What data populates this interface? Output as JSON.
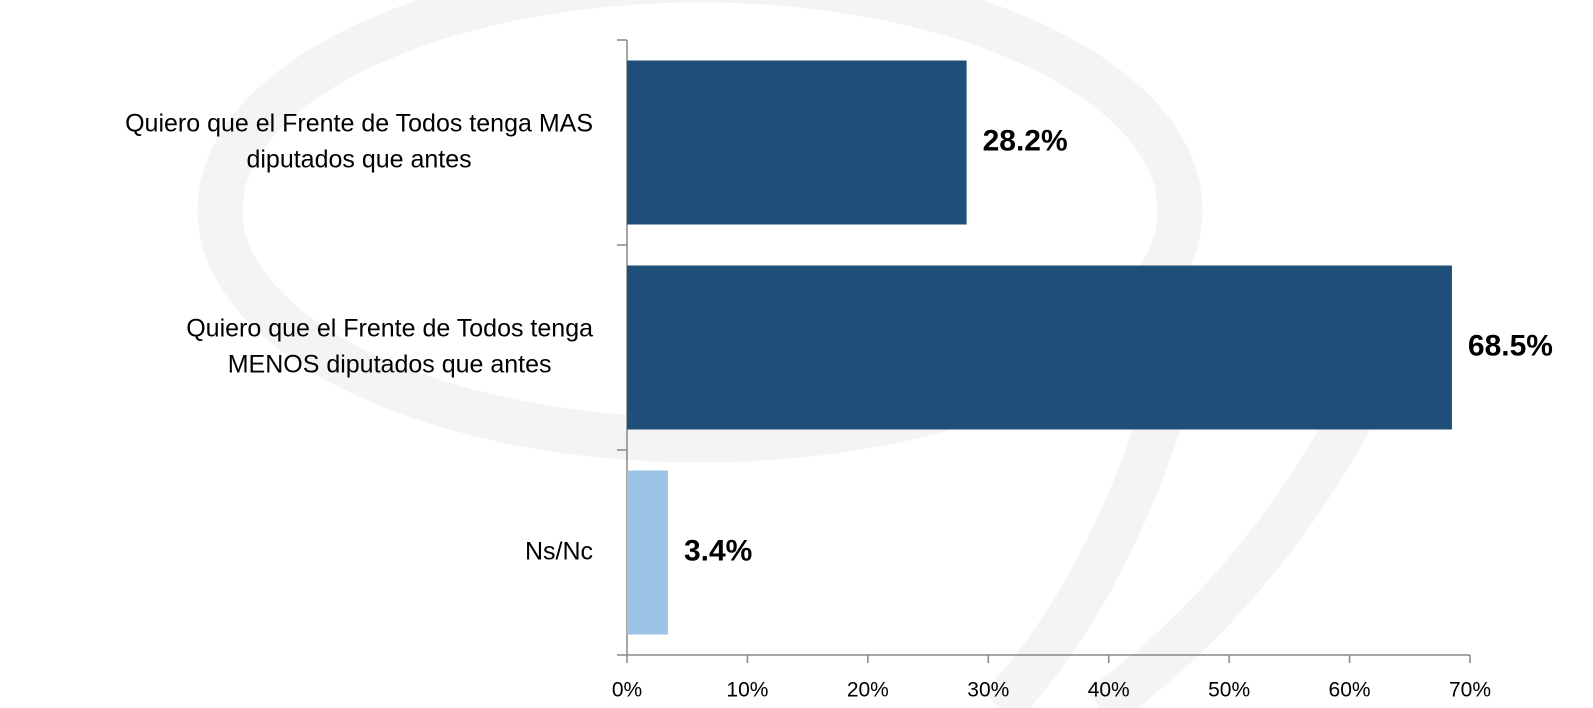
{
  "chart_data": {
    "type": "hbar",
    "categories": [
      "Quiero que el Frente de Todos tenga MAS diputados que antes",
      "Quiero que el Frente de Todos tenga MENOS diputados que antes",
      "Ns/Nc"
    ],
    "values": [
      28.2,
      68.5,
      3.4
    ],
    "value_labels": [
      "28.2%",
      "68.5%",
      "3.4%"
    ],
    "colors": [
      "#1f4e79",
      "#1f4e79",
      "#9dc3e6"
    ],
    "xlim": [
      0,
      70
    ],
    "xticks": [
      {
        "value": 0,
        "label": "0%"
      },
      {
        "value": 10,
        "label": "10%"
      },
      {
        "value": 20,
        "label": "20%"
      },
      {
        "value": 30,
        "label": "30%"
      },
      {
        "value": 40,
        "label": "40%"
      },
      {
        "value": 50,
        "label": "50%"
      },
      {
        "value": 60,
        "label": "60%"
      },
      {
        "value": 70,
        "label": "70%"
      }
    ],
    "grid": false
  }
}
